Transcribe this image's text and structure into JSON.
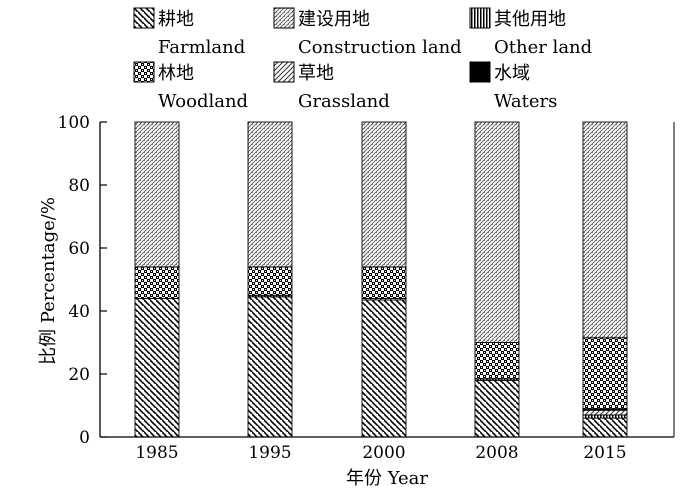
{
  "chart_data": {
    "type": "bar",
    "stacked": true,
    "categories": [
      "1985",
      "1995",
      "2000",
      "2008",
      "2015"
    ],
    "series": [
      {
        "name": "耕地 Farmland",
        "name_cn": "耕地",
        "name_en": "Farmland",
        "pattern": "diag-dense",
        "values": [
          44,
          44.5,
          43.5,
          18,
          6
        ]
      },
      {
        "name": "其他用地 Other land",
        "name_cn": "其他用地",
        "name_en": "Other land",
        "pattern": "vertical",
        "values": [
          0,
          0.5,
          0,
          0.5,
          1
        ]
      },
      {
        "name": "草地 Grassland",
        "name_cn": "草地",
        "name_en": "Grassland",
        "pattern": "diag-light",
        "values": [
          0,
          0,
          0.5,
          0,
          1.5
        ]
      },
      {
        "name": "水域 Waters",
        "name_cn": "水域",
        "name_en": "Waters",
        "pattern": "solid",
        "values": [
          0,
          0,
          0,
          0,
          0.5
        ]
      },
      {
        "name": "林地 Woodland",
        "name_cn": "林地",
        "name_en": "Woodland",
        "pattern": "checker",
        "values": [
          10,
          9,
          10,
          11.5,
          22.5
        ]
      },
      {
        "name": "建设用地 Construction land",
        "name_cn": "建设用地",
        "name_en": "Construction land",
        "pattern": "dotted",
        "values": [
          46,
          46,
          46,
          70,
          68.5
        ]
      }
    ],
    "legend_order": [
      0,
      5,
      1,
      4,
      2,
      3
    ],
    "xlabel": "年份 Year",
    "ylabel": "比例 Percentage/%",
    "ylim": [
      0,
      100
    ],
    "yticks": [
      0,
      20,
      40,
      60,
      80,
      100
    ],
    "grid": false,
    "legend_position": "top"
  }
}
